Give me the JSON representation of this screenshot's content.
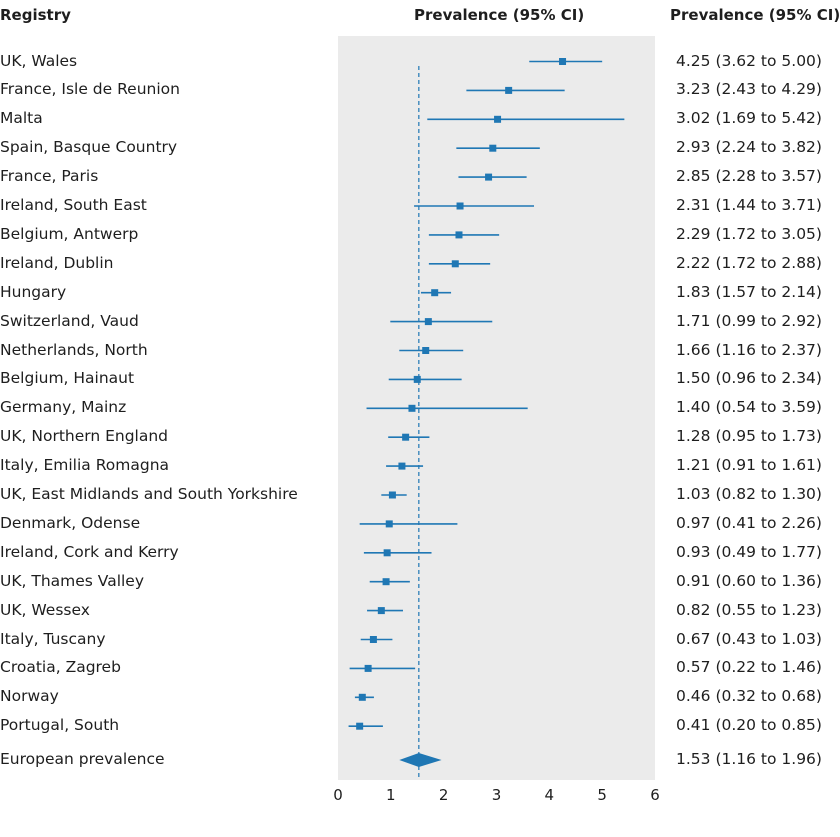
{
  "headers": {
    "registry": "Registry",
    "plot": "Prevalence (95% CI)",
    "text": "Prevalence (95% CI)"
  },
  "chart_data": {
    "type": "forest",
    "xlim": [
      0,
      6
    ],
    "xticks": [
      0,
      1,
      2,
      3,
      4,
      5,
      6
    ],
    "reference_line": 1.53,
    "accent_color": "#1f77b4",
    "panel_color": "#ebebeb",
    "studies": [
      {
        "label": "UK, Wales",
        "est": 4.25,
        "lo": 3.62,
        "hi": 5.0,
        "text": "4.25 (3.62 to 5.00)"
      },
      {
        "label": "France, Isle de Reunion",
        "est": 3.23,
        "lo": 2.43,
        "hi": 4.29,
        "text": "3.23 (2.43 to 4.29)"
      },
      {
        "label": "Malta",
        "est": 3.02,
        "lo": 1.69,
        "hi": 5.42,
        "text": "3.02 (1.69 to 5.42)"
      },
      {
        "label": "Spain, Basque Country",
        "est": 2.93,
        "lo": 2.24,
        "hi": 3.82,
        "text": "2.93 (2.24 to 3.82)"
      },
      {
        "label": "France, Paris",
        "est": 2.85,
        "lo": 2.28,
        "hi": 3.57,
        "text": "2.85 (2.28 to 3.57)"
      },
      {
        "label": "Ireland, South East",
        "est": 2.31,
        "lo": 1.44,
        "hi": 3.71,
        "text": "2.31 (1.44 to 3.71)"
      },
      {
        "label": "Belgium, Antwerp",
        "est": 2.29,
        "lo": 1.72,
        "hi": 3.05,
        "text": "2.29 (1.72 to 3.05)"
      },
      {
        "label": "Ireland, Dublin",
        "est": 2.22,
        "lo": 1.72,
        "hi": 2.88,
        "text": "2.22 (1.72 to 2.88)"
      },
      {
        "label": "Hungary",
        "est": 1.83,
        "lo": 1.57,
        "hi": 2.14,
        "text": "1.83 (1.57 to 2.14)"
      },
      {
        "label": "Switzerland, Vaud",
        "est": 1.71,
        "lo": 0.99,
        "hi": 2.92,
        "text": "1.71 (0.99 to 2.92)"
      },
      {
        "label": "Netherlands, North",
        "est": 1.66,
        "lo": 1.16,
        "hi": 2.37,
        "text": "1.66 (1.16 to 2.37)"
      },
      {
        "label": "Belgium, Hainaut",
        "est": 1.5,
        "lo": 0.96,
        "hi": 2.34,
        "text": "1.50 (0.96 to 2.34)"
      },
      {
        "label": "Germany, Mainz",
        "est": 1.4,
        "lo": 0.54,
        "hi": 3.59,
        "text": "1.40 (0.54 to 3.59)"
      },
      {
        "label": "UK, Northern England",
        "est": 1.28,
        "lo": 0.95,
        "hi": 1.73,
        "text": "1.28 (0.95 to 1.73)"
      },
      {
        "label": "Italy, Emilia Romagna",
        "est": 1.21,
        "lo": 0.91,
        "hi": 1.61,
        "text": "1.21 (0.91 to 1.61)"
      },
      {
        "label": "UK, East Midlands and South Yorkshire",
        "est": 1.03,
        "lo": 0.82,
        "hi": 1.3,
        "text": "1.03 (0.82 to 1.30)"
      },
      {
        "label": "Denmark, Odense",
        "est": 0.97,
        "lo": 0.41,
        "hi": 2.26,
        "text": "0.97 (0.41 to 2.26)"
      },
      {
        "label": "Ireland, Cork and Kerry",
        "est": 0.93,
        "lo": 0.49,
        "hi": 1.77,
        "text": "0.93 (0.49 to 1.77)"
      },
      {
        "label": "UK, Thames Valley",
        "est": 0.91,
        "lo": 0.6,
        "hi": 1.36,
        "text": "0.91 (0.60 to 1.36)"
      },
      {
        "label": "UK, Wessex",
        "est": 0.82,
        "lo": 0.55,
        "hi": 1.23,
        "text": "0.82 (0.55 to 1.23)"
      },
      {
        "label": "Italy, Tuscany",
        "est": 0.67,
        "lo": 0.43,
        "hi": 1.03,
        "text": "0.67 (0.43 to 1.03)"
      },
      {
        "label": "Croatia, Zagreb",
        "est": 0.57,
        "lo": 0.22,
        "hi": 1.46,
        "text": "0.57 (0.22 to 1.46)"
      },
      {
        "label": "Norway",
        "est": 0.46,
        "lo": 0.32,
        "hi": 0.68,
        "text": "0.46 (0.32 to 0.68)"
      },
      {
        "label": "Portugal, South",
        "est": 0.41,
        "lo": 0.2,
        "hi": 0.85,
        "text": "0.41 (0.20 to 0.85)"
      }
    ],
    "pooled": {
      "label": "European prevalence",
      "est": 1.53,
      "lo": 1.16,
      "hi": 1.96,
      "text": "1.53 (1.16 to 1.96)"
    }
  }
}
